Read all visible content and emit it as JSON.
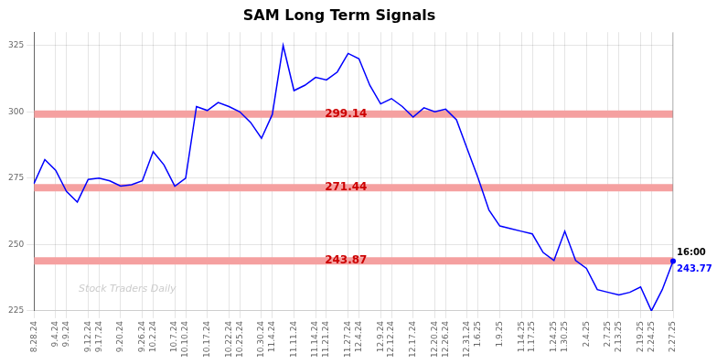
{
  "chart_data": {
    "type": "line",
    "title": "SAM Long Term Signals",
    "categories": [
      "8.28.24",
      null,
      "9.4.24",
      "9.9.24",
      null,
      "9.12.24",
      "9.17.24",
      null,
      "9.20.24",
      null,
      "9.26.24",
      "10.2.24",
      null,
      "10.7.24",
      "10.10.24",
      null,
      "10.17.24",
      null,
      "10.22.24",
      "10.25.24",
      null,
      "10.30.24",
      "11.4.24",
      null,
      "11.11.24",
      null,
      "11.14.24",
      "11.21.24",
      null,
      "11.27.24",
      "12.4.24",
      null,
      "12.9.24",
      "12.12.24",
      null,
      "12.17.24",
      null,
      "12.20.24",
      "12.26.24",
      null,
      "12.31.24",
      "1.6.25",
      null,
      "1.9.25",
      null,
      "1.14.25",
      "1.17.25",
      null,
      "1.24.25",
      "1.30.25",
      null,
      "2.4.25",
      null,
      "2.7.25",
      "2.13.25",
      null,
      "2.19.25",
      "2.24.25",
      null,
      "2.27.25"
    ],
    "values": [
      273.0,
      282.0,
      278.0,
      270.0,
      266.0,
      274.5,
      275.0,
      274.0,
      272.0,
      272.5,
      274.0,
      285.0,
      280.0,
      272.0,
      275.0,
      302.0,
      300.5,
      303.5,
      302.0,
      300.0,
      296.0,
      290.0,
      299.0,
      325.0,
      308.0,
      310.0,
      313.0,
      312.0,
      315.0,
      322.0,
      320.0,
      310.0,
      303.0,
      305.0,
      302.0,
      298.0,
      301.5,
      300.0,
      301.0,
      297.0,
      286.0,
      275.0,
      263.0,
      257.0,
      256.0,
      255.0,
      254.0,
      247.0,
      244.0,
      255.0,
      244.0,
      241.0,
      233.0,
      232.0,
      231.0,
      232.0,
      234.0,
      225.0,
      233.0,
      243.77
    ],
    "color": "blue",
    "ylim": [
      225,
      330
    ],
    "yticks": [
      225,
      250,
      275,
      300,
      325
    ],
    "grid": true,
    "hlines": [
      {
        "y": 299.14,
        "label": "299.14"
      },
      {
        "y": 271.44,
        "label": "271.44"
      },
      {
        "y": 243.87,
        "label": "243.87"
      }
    ],
    "hline_color": "#f5a0a0",
    "hline_label_color": "#cc0000",
    "annotation": {
      "y": 243.77,
      "color": "blue",
      "labels": [
        {
          "text": "16:00",
          "color": "black"
        },
        {
          "text": "243.77",
          "color": "blue"
        }
      ]
    },
    "watermark": "Stock Traders Daily"
  }
}
